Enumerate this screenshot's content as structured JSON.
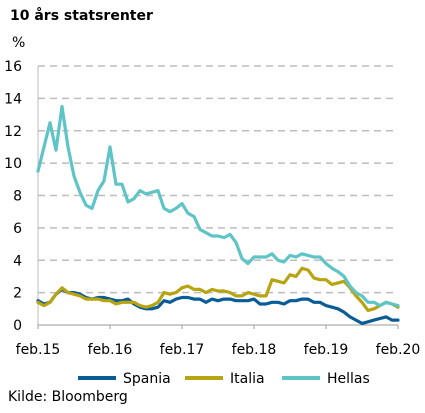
{
  "chart_data": {
    "type": "line",
    "title": "10 års statsrenter",
    "ylabel": "%",
    "xlabel": "",
    "ylim": [
      0,
      16
    ],
    "yticks": [
      0,
      2,
      4,
      6,
      8,
      10,
      12,
      14,
      16
    ],
    "xticks": [
      "feb.15",
      "feb.16",
      "feb.17",
      "feb.18",
      "feb.19",
      "feb.20"
    ],
    "xlim": [
      "2015-02",
      "2020-02"
    ],
    "grid": "horizontal dashed",
    "legend_position": "bottom",
    "source": "Kilde: Bloomberg",
    "series": [
      {
        "name": "Spania",
        "color": "#0a5c96",
        "x": [
          "2015-02",
          "2015-03",
          "2015-04",
          "2015-05",
          "2015-06",
          "2015-07",
          "2015-08",
          "2015-09",
          "2015-10",
          "2015-11",
          "2015-12",
          "2016-01",
          "2016-02",
          "2016-03",
          "2016-04",
          "2016-05",
          "2016-06",
          "2016-07",
          "2016-08",
          "2016-09",
          "2016-10",
          "2016-11",
          "2016-12",
          "2017-01",
          "2017-02",
          "2017-03",
          "2017-04",
          "2017-05",
          "2017-06",
          "2017-07",
          "2017-08",
          "2017-09",
          "2017-10",
          "2017-11",
          "2017-12",
          "2018-01",
          "2018-02",
          "2018-03",
          "2018-04",
          "2018-05",
          "2018-06",
          "2018-07",
          "2018-08",
          "2018-09",
          "2018-10",
          "2018-11",
          "2018-12",
          "2019-01",
          "2019-02",
          "2019-03",
          "2019-04",
          "2019-05",
          "2019-06",
          "2019-07",
          "2019-08",
          "2019-09",
          "2019-10",
          "2019-11",
          "2019-12",
          "2020-01",
          "2020-02"
        ],
        "values": [
          1.5,
          1.3,
          1.4,
          1.9,
          2.2,
          2.0,
          2.0,
          1.9,
          1.7,
          1.6,
          1.7,
          1.7,
          1.6,
          1.5,
          1.5,
          1.6,
          1.3,
          1.1,
          1.0,
          1.0,
          1.1,
          1.5,
          1.4,
          1.6,
          1.7,
          1.7,
          1.6,
          1.6,
          1.4,
          1.6,
          1.5,
          1.6,
          1.6,
          1.5,
          1.5,
          1.5,
          1.6,
          1.3,
          1.3,
          1.4,
          1.4,
          1.3,
          1.5,
          1.5,
          1.6,
          1.6,
          1.4,
          1.4,
          1.2,
          1.1,
          1.0,
          0.8,
          0.5,
          0.3,
          0.1,
          0.2,
          0.3,
          0.4,
          0.5,
          0.3,
          0.3
        ]
      },
      {
        "name": "Italia",
        "color": "#b8a410",
        "x": [
          "2015-02",
          "2015-03",
          "2015-04",
          "2015-05",
          "2015-06",
          "2015-07",
          "2015-08",
          "2015-09",
          "2015-10",
          "2015-11",
          "2015-12",
          "2016-01",
          "2016-02",
          "2016-03",
          "2016-04",
          "2016-05",
          "2016-06",
          "2016-07",
          "2016-08",
          "2016-09",
          "2016-10",
          "2016-11",
          "2016-12",
          "2017-01",
          "2017-02",
          "2017-03",
          "2017-04",
          "2017-05",
          "2017-06",
          "2017-07",
          "2017-08",
          "2017-09",
          "2017-10",
          "2017-11",
          "2017-12",
          "2018-01",
          "2018-02",
          "2018-03",
          "2018-04",
          "2018-05",
          "2018-06",
          "2018-07",
          "2018-08",
          "2018-09",
          "2018-10",
          "2018-11",
          "2018-12",
          "2019-01",
          "2019-02",
          "2019-03",
          "2019-04",
          "2019-05",
          "2019-06",
          "2019-07",
          "2019-08",
          "2019-09",
          "2019-10",
          "2019-11",
          "2019-12",
          "2020-01",
          "2020-02"
        ],
        "values": [
          1.4,
          1.2,
          1.4,
          1.9,
          2.3,
          2.0,
          1.9,
          1.8,
          1.6,
          1.6,
          1.6,
          1.5,
          1.5,
          1.3,
          1.4,
          1.4,
          1.4,
          1.2,
          1.1,
          1.2,
          1.4,
          2.0,
          1.9,
          2.0,
          2.3,
          2.4,
          2.2,
          2.2,
          2.0,
          2.2,
          2.1,
          2.1,
          2.0,
          1.8,
          1.8,
          2.0,
          1.9,
          1.8,
          1.8,
          2.8,
          2.7,
          2.6,
          3.1,
          3.0,
          3.5,
          3.4,
          2.9,
          2.8,
          2.8,
          2.5,
          2.6,
          2.7,
          2.3,
          1.8,
          1.4,
          0.9,
          1.0,
          1.2,
          1.4,
          1.3,
          1.1
        ]
      },
      {
        "name": "Hellas",
        "color": "#5ec4c6",
        "x": [
          "2015-02",
          "2015-03",
          "2015-04",
          "2015-05",
          "2015-06",
          "2015-07",
          "2015-08",
          "2015-09",
          "2015-10",
          "2015-11",
          "2015-12",
          "2016-01",
          "2016-02",
          "2016-03",
          "2016-04",
          "2016-05",
          "2016-06",
          "2016-07",
          "2016-08",
          "2016-09",
          "2016-10",
          "2016-11",
          "2016-12",
          "2017-01",
          "2017-02",
          "2017-03",
          "2017-04",
          "2017-05",
          "2017-06",
          "2017-07",
          "2017-08",
          "2017-09",
          "2017-10",
          "2017-11",
          "2017-12",
          "2018-01",
          "2018-02",
          "2018-03",
          "2018-04",
          "2018-05",
          "2018-06",
          "2018-07",
          "2018-08",
          "2018-09",
          "2018-10",
          "2018-11",
          "2018-12",
          "2019-01",
          "2019-02",
          "2019-03",
          "2019-04",
          "2019-05",
          "2019-06",
          "2019-07",
          "2019-08",
          "2019-09",
          "2019-10",
          "2019-11",
          "2019-12",
          "2020-01",
          "2020-02"
        ],
        "values": [
          9.5,
          11.0,
          12.5,
          10.8,
          13.5,
          11.0,
          9.2,
          8.2,
          7.4,
          7.2,
          8.3,
          8.9,
          11.0,
          8.7,
          8.7,
          7.6,
          7.8,
          8.3,
          8.1,
          8.2,
          8.3,
          7.2,
          7.0,
          7.2,
          7.5,
          6.9,
          6.7,
          5.9,
          5.7,
          5.5,
          5.5,
          5.4,
          5.6,
          5.1,
          4.1,
          3.8,
          4.2,
          4.2,
          4.2,
          4.4,
          4.0,
          3.9,
          4.3,
          4.2,
          4.4,
          4.3,
          4.2,
          4.2,
          3.8,
          3.5,
          3.3,
          3.0,
          2.4,
          2.0,
          1.8,
          1.4,
          1.4,
          1.2,
          1.4,
          1.3,
          1.2
        ]
      }
    ]
  }
}
